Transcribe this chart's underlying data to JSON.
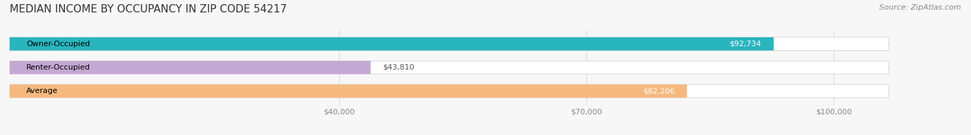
{
  "title": "MEDIAN INCOME BY OCCUPANCY IN ZIP CODE 54217",
  "source": "Source: ZipAtlas.com",
  "categories": [
    "Owner-Occupied",
    "Renter-Occupied",
    "Average"
  ],
  "values": [
    92734,
    43810,
    82206
  ],
  "bar_colors": [
    "#29b5be",
    "#c4a8d4",
    "#f5b97f"
  ],
  "bar_bg_color": "#f0f0f0",
  "label_color": "#555555",
  "value_labels": [
    "$92,734",
    "$43,810",
    "$82,206"
  ],
  "tick_labels": [
    "$40,000",
    "$70,000",
    "$100,000"
  ],
  "tick_values": [
    40000,
    70000,
    100000
  ],
  "xlim": [
    0,
    110000
  ],
  "bar_height": 0.55,
  "figsize": [
    14.06,
    1.96
  ],
  "dpi": 100,
  "title_fontsize": 11,
  "source_fontsize": 8,
  "label_fontsize": 8,
  "value_fontsize": 8,
  "tick_fontsize": 8,
  "background_color": "#f7f7f7"
}
